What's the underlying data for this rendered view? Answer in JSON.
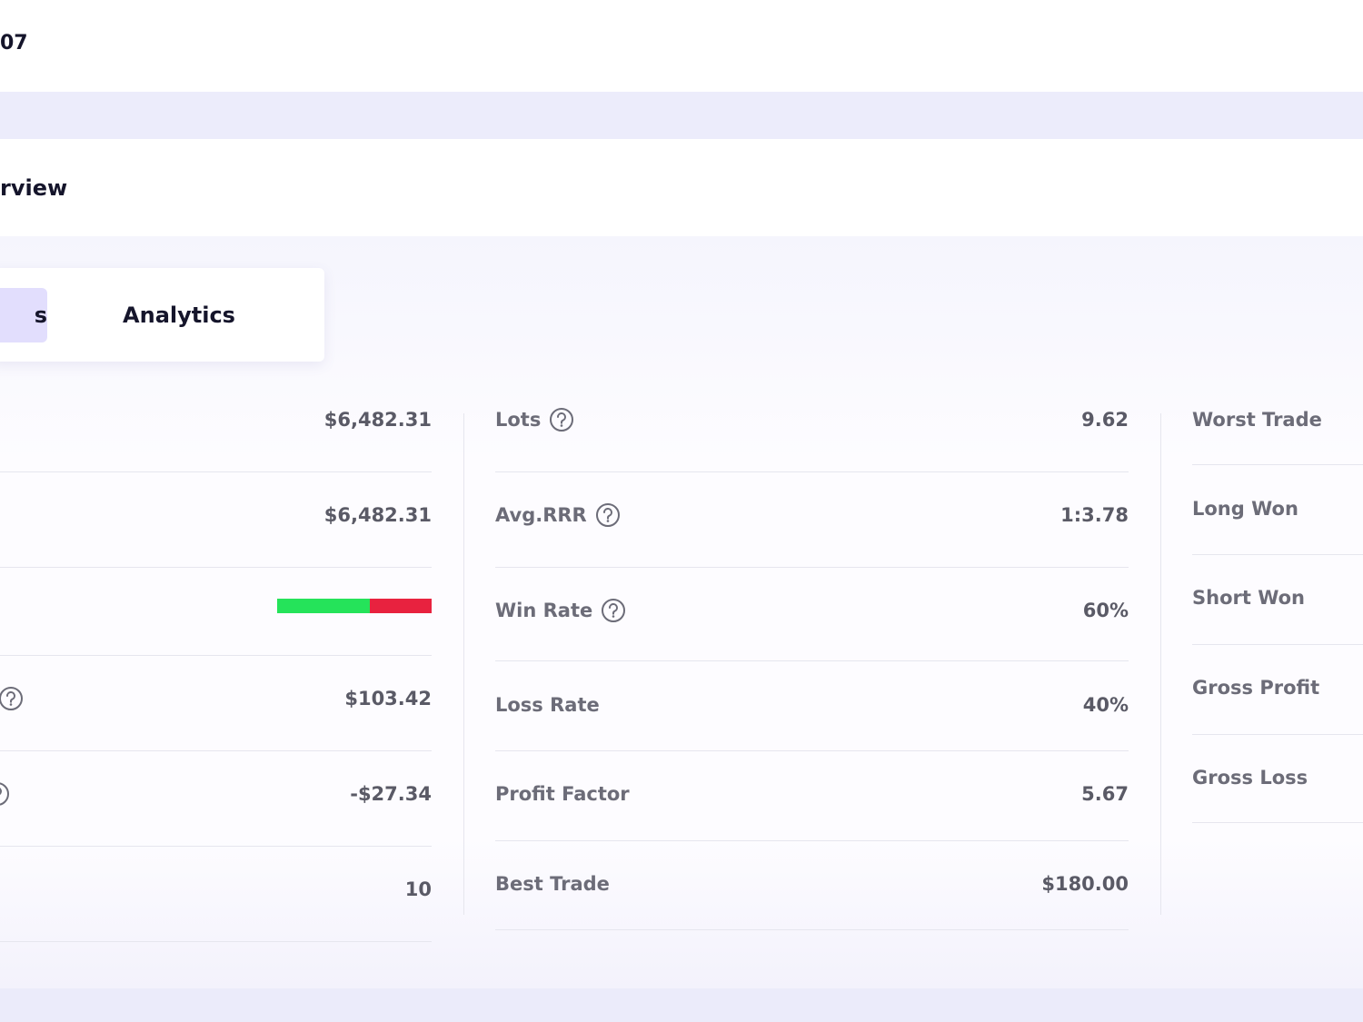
{
  "header": {
    "id_fragment": "07"
  },
  "section": {
    "title_fragment": "rview"
  },
  "tabs": [
    {
      "label": "s",
      "active": true
    },
    {
      "label": "Analytics",
      "active": false
    }
  ],
  "columns": [
    {
      "rows": [
        {
          "value": "$6,482.31"
        },
        {
          "value": "$6,482.31"
        },
        {
          "bar": {
            "win": 60,
            "loss": 40,
            "win_color": "#25e35a",
            "loss_color": "#e8223f"
          }
        },
        {
          "help": true,
          "value": "$103.42"
        },
        {
          "help": true,
          "value": "-$27.34"
        },
        {
          "value": "10"
        }
      ]
    },
    {
      "rows": [
        {
          "label": "Lots",
          "help": true,
          "value": "9.62"
        },
        {
          "label": "Avg.RRR",
          "help": true,
          "value": "1:3.78"
        },
        {
          "label": "Win Rate",
          "help": true,
          "value": "60%"
        },
        {
          "label": "Loss Rate",
          "value": "40%"
        },
        {
          "label": "Profit Factor",
          "value": "5.67"
        },
        {
          "label": "Best Trade",
          "value": "$180.00"
        }
      ]
    },
    {
      "rows": [
        {
          "label": "Worst Trade"
        },
        {
          "label": "Long Won"
        },
        {
          "label": "Short Won"
        },
        {
          "label": "Gross Profit"
        },
        {
          "label": "Gross Loss"
        }
      ]
    }
  ]
}
